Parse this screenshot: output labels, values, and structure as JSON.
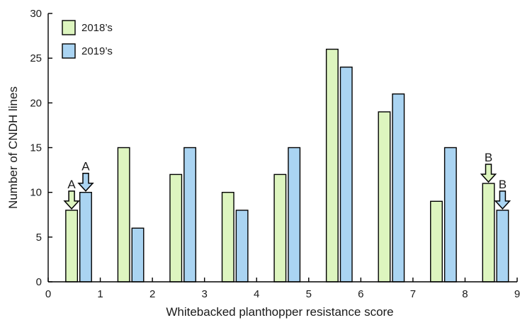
{
  "chart_data": {
    "type": "bar",
    "xlabel": "Whitebacked planthopper resistance score",
    "ylabel": "Number of CNDH lines",
    "xlim": [
      0,
      9
    ],
    "ylim": [
      0,
      30
    ],
    "x_ticks": [
      "0",
      "1",
      "2",
      "3",
      "4",
      "5",
      "6",
      "7",
      "8",
      "9"
    ],
    "y_ticks": [
      "0",
      "5",
      "10",
      "15",
      "20",
      "25",
      "30"
    ],
    "categories": [
      1,
      2,
      3,
      4,
      5,
      6,
      7,
      8,
      9
    ],
    "series": [
      {
        "name": "2018’s",
        "color": "#ddf5bf",
        "values": [
          8,
          15,
          12,
          10,
          12,
          26,
          19,
          9,
          11
        ]
      },
      {
        "name": "2019’s",
        "color": "#aad4f2",
        "values": [
          10,
          6,
          15,
          8,
          15,
          24,
          21,
          15,
          8
        ]
      }
    ],
    "legend_position": "top-left",
    "grid": false,
    "annotations": [
      {
        "label": "A",
        "series": 0,
        "category_index": 0
      },
      {
        "label": "A",
        "series": 1,
        "category_index": 0
      },
      {
        "label": "B",
        "series": 0,
        "category_index": 8
      },
      {
        "label": "B",
        "series": 1,
        "category_index": 8
      }
    ]
  }
}
